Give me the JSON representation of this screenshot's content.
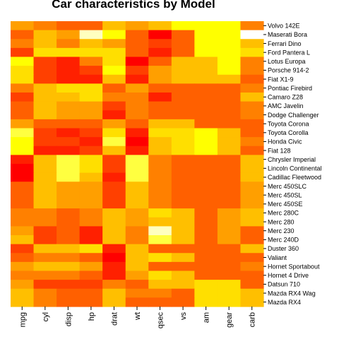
{
  "chart_data": {
    "type": "heatmap",
    "title": "Car characteristics by Model",
    "x_labels": [
      "mpg",
      "cyl",
      "disp",
      "hp",
      "drat",
      "wt",
      "qsec",
      "vs",
      "am",
      "gear",
      "carb"
    ],
    "y_labels": [
      "Volvo 142E",
      "Maserati Bora",
      "Ferrari Dino",
      "Ford Pantera L",
      "Lotus Europa",
      "Porsche 914-2",
      "Fiat X1-9",
      "Pontiac Firebird",
      "Camaro Z28",
      "AMC Javelin",
      "Dodge Challenger",
      "Toyota Corona",
      "Toyota Corolla",
      "Honda Civic",
      "Fiat 128",
      "Chrysler Imperial",
      "Lincoln Continental",
      "Cadillac Fleetwood",
      "Merc 450SLC",
      "Merc 450SL",
      "Merc 450SE",
      "Merc 280C",
      "Merc 280",
      "Merc 230",
      "Merc 240D",
      "Duster 360",
      "Valiant",
      "Hornet Sportabout",
      "Hornet 4 Drive",
      "Datsun 710",
      "Mazda RX4 Wag",
      "Mazda RX4"
    ],
    "color_scale": [
      "#FF0000",
      "#FF2000",
      "#FF4000",
      "#FF6000",
      "#FF8000",
      "#FF9F00",
      "#FFBF00",
      "#FFDF00",
      "#FFFF00",
      "#FFFF40",
      "#FFFFBF",
      "#FFFFFF"
    ],
    "values": [
      [
        5,
        4,
        3,
        3,
        6,
        5,
        6,
        8,
        8,
        8,
        4
      ],
      [
        3,
        6,
        5,
        10,
        8,
        3,
        0,
        3,
        8,
        8,
        11
      ],
      [
        4,
        6,
        4,
        6,
        5,
        3,
        2,
        3,
        8,
        8,
        6
      ],
      [
        2,
        7,
        7,
        7,
        7,
        3,
        1,
        3,
        8,
        8,
        7
      ],
      [
        8,
        2,
        1,
        4,
        7,
        0,
        3,
        6,
        6,
        8,
        4
      ],
      [
        7,
        2,
        1,
        2,
        8,
        2,
        5,
        6,
        6,
        8,
        4
      ],
      [
        7,
        2,
        1,
        1,
        6,
        1,
        5,
        6,
        6,
        6,
        3
      ],
      [
        4,
        6,
        7,
        7,
        3,
        5,
        3,
        3,
        3,
        3,
        4
      ],
      [
        2,
        6,
        6,
        7,
        4,
        4,
        1,
        3,
        3,
        3,
        6
      ],
      [
        3,
        6,
        5,
        5,
        2,
        4,
        3,
        3,
        3,
        3,
        4
      ],
      [
        3,
        6,
        5,
        5,
        1,
        4,
        3,
        3,
        3,
        3,
        4
      ],
      [
        5,
        3,
        3,
        3,
        5,
        3,
        6,
        6,
        3,
        3,
        3
      ],
      [
        9,
        2,
        1,
        2,
        7,
        1,
        7,
        7,
        8,
        6,
        3
      ],
      [
        8,
        2,
        2,
        1,
        9,
        0,
        6,
        7,
        8,
        6,
        4
      ],
      [
        8,
        1,
        1,
        2,
        6,
        1,
        6,
        7,
        8,
        6,
        3
      ],
      [
        1,
        6,
        9,
        7,
        2,
        9,
        4,
        3,
        3,
        3,
        6
      ],
      [
        0,
        6,
        9,
        7,
        2,
        9,
        4,
        3,
        3,
        3,
        6
      ],
      [
        0,
        6,
        9,
        6,
        1,
        9,
        4,
        3,
        3,
        3,
        6
      ],
      [
        3,
        6,
        5,
        5,
        2,
        6,
        4,
        3,
        3,
        3,
        5
      ],
      [
        3,
        6,
        5,
        5,
        2,
        6,
        4,
        3,
        3,
        3,
        5
      ],
      [
        3,
        6,
        5,
        5,
        2,
        6,
        4,
        3,
        3,
        3,
        5
      ],
      [
        4,
        4,
        3,
        4,
        6,
        5,
        7,
        6,
        3,
        5,
        6
      ],
      [
        4,
        4,
        3,
        4,
        6,
        5,
        6,
        6,
        3,
        5,
        6
      ],
      [
        5,
        2,
        3,
        1,
        6,
        4,
        10,
        6,
        3,
        5,
        3
      ],
      [
        6,
        2,
        3,
        1,
        6,
        4,
        9,
        6,
        3,
        5,
        3
      ],
      [
        2,
        6,
        6,
        7,
        1,
        6,
        3,
        3,
        3,
        3,
        6
      ],
      [
        3,
        4,
        4,
        3,
        0,
        6,
        7,
        6,
        3,
        3,
        3
      ],
      [
        5,
        6,
        6,
        5,
        1,
        6,
        3,
        3,
        3,
        3,
        4
      ],
      [
        4,
        4,
        4,
        3,
        1,
        5,
        7,
        6,
        3,
        3,
        3
      ],
      [
        5,
        2,
        2,
        2,
        4,
        3,
        6,
        6,
        7,
        7,
        3
      ],
      [
        6,
        4,
        3,
        3,
        6,
        4,
        4,
        3,
        7,
        7,
        6
      ],
      [
        6,
        4,
        3,
        3,
        6,
        3,
        3,
        3,
        7,
        7,
        6
      ]
    ]
  }
}
